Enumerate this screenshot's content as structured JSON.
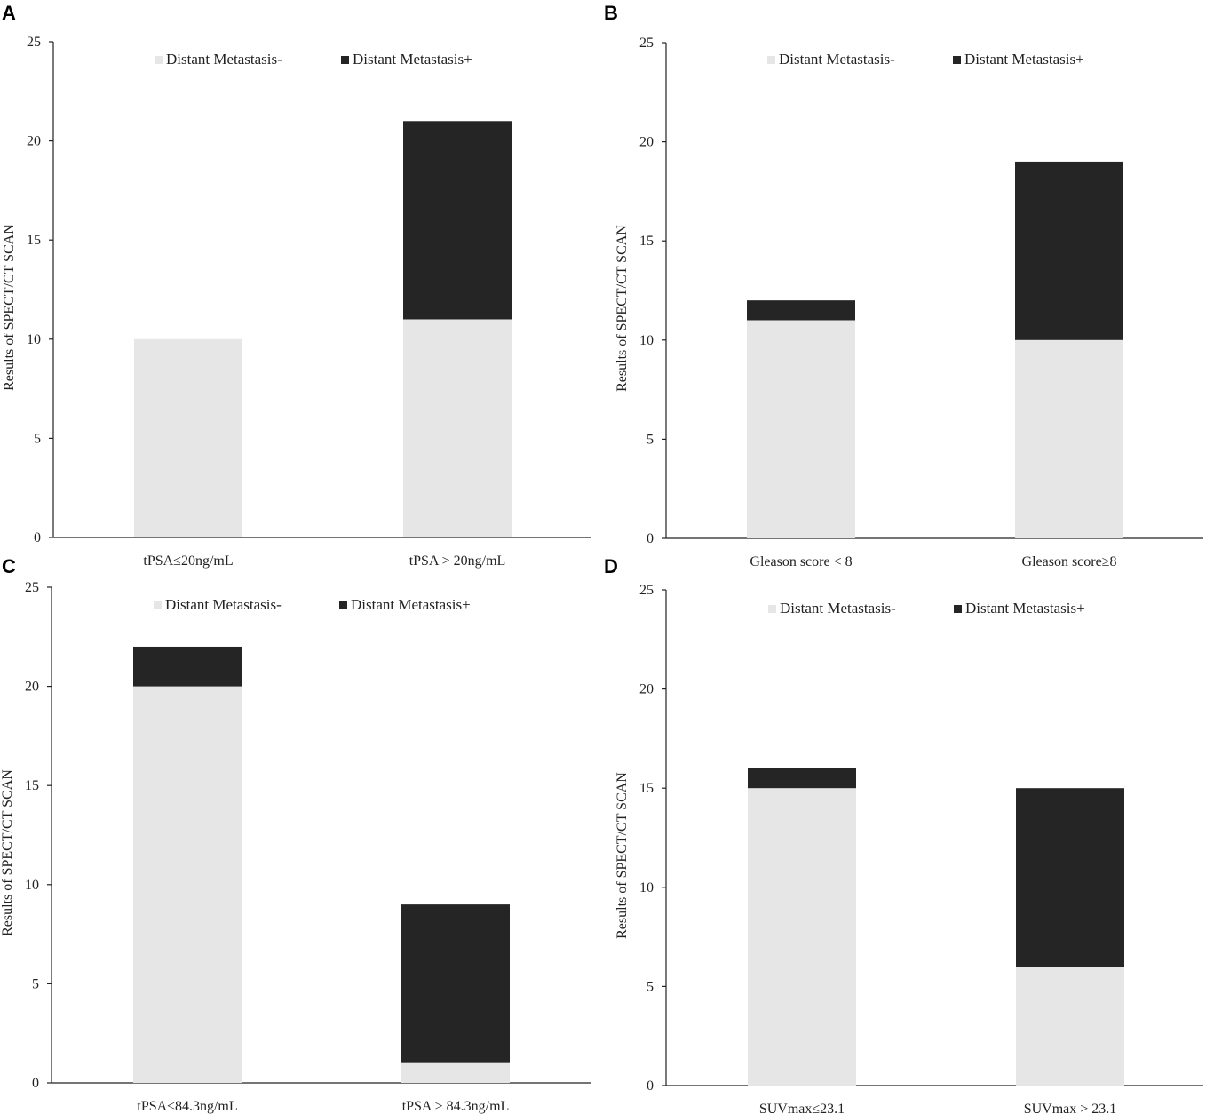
{
  "colors": {
    "negative": "#e6e6e6",
    "positive": "#252525",
    "axis": "#222222"
  },
  "chart_data": [
    {
      "panel": "A",
      "type": "bar",
      "stacked": true,
      "categories": [
        "tPSA≤20ng/mL",
        "tPSA > 20ng/mL"
      ],
      "series": [
        {
          "name": "Distant Metastasis-",
          "values": [
            10,
            11
          ]
        },
        {
          "name": "Distant Metastasis+",
          "values": [
            0,
            10
          ]
        }
      ],
      "ylabel": "Results  of SPECT/CT SCAN",
      "ylim": [
        0,
        25
      ],
      "yticks": [
        0,
        5,
        10,
        15,
        20,
        25
      ],
      "legend": "top-center"
    },
    {
      "panel": "B",
      "type": "bar",
      "stacked": true,
      "categories": [
        "Gleason  score < 8",
        "Gleason  score≥8"
      ],
      "series": [
        {
          "name": "Distant Metastasis-",
          "values": [
            11,
            10
          ]
        },
        {
          "name": "Distant Metastasis+",
          "values": [
            1,
            9
          ]
        }
      ],
      "ylabel": "Results  of SPECT/CT SCAN",
      "ylim": [
        0,
        25
      ],
      "yticks": [
        0,
        5,
        10,
        15,
        20,
        25
      ],
      "legend": "top-center"
    },
    {
      "panel": "C",
      "type": "bar",
      "stacked": true,
      "categories": [
        "tPSA≤84.3ng/mL",
        "tPSA > 84.3ng/mL"
      ],
      "series": [
        {
          "name": "Distant Metastasis-",
          "values": [
            20,
            1
          ]
        },
        {
          "name": "Distant Metastasis+",
          "values": [
            2,
            8
          ]
        }
      ],
      "ylabel": "Results  of SPECT/CT SCAN",
      "ylim": [
        0,
        25
      ],
      "yticks": [
        0,
        5,
        10,
        15,
        20,
        25
      ],
      "legend": "top-center"
    },
    {
      "panel": "D",
      "type": "bar",
      "stacked": true,
      "categories": [
        "SUVmax≤23.1",
        "SUVmax > 23.1"
      ],
      "series": [
        {
          "name": "Distant Metastasis-",
          "values": [
            15,
            6
          ]
        },
        {
          "name": "Distant Metastasis+",
          "values": [
            1,
            9
          ]
        }
      ],
      "ylabel": "Results  of SPECT/CT SCAN",
      "ylim": [
        0,
        25
      ],
      "yticks": [
        0,
        5,
        10,
        15,
        20,
        25
      ],
      "legend": "top-center"
    }
  ]
}
